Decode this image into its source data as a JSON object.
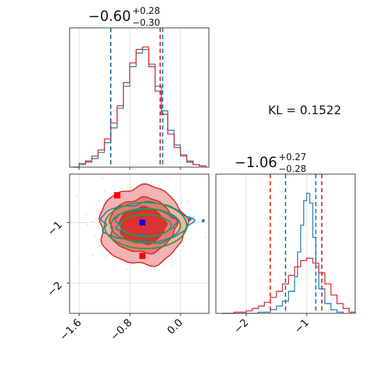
{
  "chart_data": {
    "type": "corner",
    "annotation": "KL = 0.1522",
    "colors": {
      "series_blue": "#1f77b4",
      "series_red": "#d62728",
      "gaussian": "#2ca02c",
      "grid": "#d9d9d9"
    },
    "params": [
      {
        "title": "−0.60",
        "plus": "+0.28",
        "minus": "−0.30",
        "median": -0.6,
        "q_low": -0.9,
        "q_high": -0.32
      },
      {
        "title": "−1.06",
        "plus": "+0.27",
        "minus": "−0.28",
        "median": -1.06,
        "q_low": -1.34,
        "q_high": -0.79
      }
    ],
    "x_axis": {
      "ticks": [
        -1.6,
        -0.8,
        0.0
      ],
      "tick_labels": [
        "−1.6",
        "−0.8",
        "0.0"
      ],
      "range": [
        -1.75,
        0.45
      ]
    },
    "y_axis": {
      "ticks": [
        -1,
        -2
      ],
      "tick_labels": [
        "−1",
        "−2"
      ],
      "range": [
        -2.5,
        -0.2
      ]
    },
    "diag2_axis": {
      "ticks": [
        -2,
        -1
      ],
      "tick_labels": [
        "−2",
        "−1"
      ],
      "range": [
        -2.5,
        -0.2
      ]
    },
    "diag1_lines": {
      "red": [
        -1.1,
        -0.32
      ],
      "blue": [
        -1.1,
        -0.28
      ]
    },
    "diag2_lines": {
      "red": [
        -1.6,
        -0.75
      ],
      "blue": [
        -1.35,
        -0.85
      ]
    },
    "hist1_blue": [
      {
        "x": -1.7,
        "y": 0.0
      },
      {
        "x": -1.6,
        "y": 0.02
      },
      {
        "x": -1.5,
        "y": 0.04
      },
      {
        "x": -1.4,
        "y": 0.07
      },
      {
        "x": -1.3,
        "y": 0.12
      },
      {
        "x": -1.2,
        "y": 0.2
      },
      {
        "x": -1.1,
        "y": 0.32
      },
      {
        "x": -1.0,
        "y": 0.48
      },
      {
        "x": -0.9,
        "y": 0.66
      },
      {
        "x": -0.8,
        "y": 0.82
      },
      {
        "x": -0.7,
        "y": 0.93
      },
      {
        "x": -0.6,
        "y": 0.96
      },
      {
        "x": -0.5,
        "y": 0.84
      },
      {
        "x": -0.4,
        "y": 0.66
      },
      {
        "x": -0.3,
        "y": 0.46
      },
      {
        "x": -0.2,
        "y": 0.3
      },
      {
        "x": -0.1,
        "y": 0.18
      },
      {
        "x": 0.0,
        "y": 0.1
      },
      {
        "x": 0.1,
        "y": 0.05
      },
      {
        "x": 0.2,
        "y": 0.02
      },
      {
        "x": 0.3,
        "y": 0.01
      },
      {
        "x": 0.4,
        "y": 0.0
      }
    ],
    "hist1_red": [
      {
        "x": -1.7,
        "y": 0.0
      },
      {
        "x": -1.6,
        "y": 0.03
      },
      {
        "x": -1.5,
        "y": 0.05
      },
      {
        "x": -1.4,
        "y": 0.09
      },
      {
        "x": -1.3,
        "y": 0.14
      },
      {
        "x": -1.2,
        "y": 0.23
      },
      {
        "x": -1.1,
        "y": 0.36
      },
      {
        "x": -1.0,
        "y": 0.5
      },
      {
        "x": -0.9,
        "y": 0.69
      },
      {
        "x": -0.8,
        "y": 0.85
      },
      {
        "x": -0.7,
        "y": 0.96
      },
      {
        "x": -0.6,
        "y": 0.98
      },
      {
        "x": -0.5,
        "y": 0.82
      },
      {
        "x": -0.4,
        "y": 0.62
      },
      {
        "x": -0.3,
        "y": 0.43
      },
      {
        "x": -0.2,
        "y": 0.27
      },
      {
        "x": -0.1,
        "y": 0.16
      },
      {
        "x": 0.0,
        "y": 0.09
      },
      {
        "x": 0.1,
        "y": 0.04
      },
      {
        "x": 0.2,
        "y": 0.02
      },
      {
        "x": 0.3,
        "y": 0.01
      },
      {
        "x": 0.4,
        "y": 0.0
      }
    ],
    "hist2_blue": [
      {
        "x": -2.4,
        "y": 0.0
      },
      {
        "x": -2.2,
        "y": 0.0
      },
      {
        "x": -2.0,
        "y": 0.0
      },
      {
        "x": -1.8,
        "y": 0.01
      },
      {
        "x": -1.6,
        "y": 0.03
      },
      {
        "x": -1.5,
        "y": 0.06
      },
      {
        "x": -1.4,
        "y": 0.1
      },
      {
        "x": -1.3,
        "y": 0.18
      },
      {
        "x": -1.2,
        "y": 0.3
      },
      {
        "x": -1.15,
        "y": 0.5
      },
      {
        "x": -1.1,
        "y": 0.72
      },
      {
        "x": -1.05,
        "y": 0.92
      },
      {
        "x": -1.0,
        "y": 0.98
      },
      {
        "x": -0.95,
        "y": 0.9
      },
      {
        "x": -0.9,
        "y": 0.62
      },
      {
        "x": -0.85,
        "y": 0.38
      },
      {
        "x": -0.8,
        "y": 0.2
      },
      {
        "x": -0.7,
        "y": 0.08
      },
      {
        "x": -0.6,
        "y": 0.03
      },
      {
        "x": -0.5,
        "y": 0.01
      },
      {
        "x": -0.4,
        "y": 0.0
      }
    ],
    "hist2_red": [
      {
        "x": -2.4,
        "y": 0.0
      },
      {
        "x": -2.2,
        "y": 0.01
      },
      {
        "x": -2.0,
        "y": 0.02
      },
      {
        "x": -1.9,
        "y": 0.04
      },
      {
        "x": -1.8,
        "y": 0.06
      },
      {
        "x": -1.7,
        "y": 0.09
      },
      {
        "x": -1.6,
        "y": 0.13
      },
      {
        "x": -1.5,
        "y": 0.18
      },
      {
        "x": -1.4,
        "y": 0.24
      },
      {
        "x": -1.3,
        "y": 0.31
      },
      {
        "x": -1.2,
        "y": 0.38
      },
      {
        "x": -1.1,
        "y": 0.43
      },
      {
        "x": -1.0,
        "y": 0.45
      },
      {
        "x": -0.9,
        "y": 0.41
      },
      {
        "x": -0.8,
        "y": 0.33
      },
      {
        "x": -0.7,
        "y": 0.24
      },
      {
        "x": -0.6,
        "y": 0.15
      },
      {
        "x": -0.5,
        "y": 0.08
      },
      {
        "x": -0.4,
        "y": 0.04
      },
      {
        "x": -0.3,
        "y": 0.01
      },
      {
        "x": -0.2,
        "y": 0.0
      }
    ],
    "contours_red": [
      {
        "cx": -0.6,
        "cy": -1.05,
        "rx": 0.68,
        "ry": 0.65,
        "level": 0.2
      },
      {
        "cx": -0.6,
        "cy": -1.05,
        "rx": 0.52,
        "ry": 0.45,
        "level": 0.4
      },
      {
        "cx": -0.6,
        "cy": -1.05,
        "rx": 0.36,
        "ry": 0.3,
        "level": 0.7
      }
    ],
    "contours_blue": [
      {
        "cx": -0.55,
        "cy": -1.0,
        "rx": 0.7,
        "ry": 0.32
      },
      {
        "cx": -0.55,
        "cy": -1.0,
        "rx": 0.48,
        "ry": 0.22
      }
    ],
    "contours_green": [
      {
        "cx": -0.55,
        "cy": -1.05,
        "rx": 0.65,
        "ry": 0.38
      },
      {
        "cx": -0.55,
        "cy": -1.05,
        "rx": 0.55,
        "ry": 0.28
      },
      {
        "cx": -0.55,
        "cy": -1.05,
        "rx": 0.4,
        "ry": 0.18
      }
    ],
    "markers_red": [
      {
        "x": -1.0,
        "y": -0.55
      },
      {
        "x": -0.6,
        "y": -1.0
      },
      {
        "x": -0.6,
        "y": -1.55
      }
    ],
    "markers_blue": [
      {
        "x": -0.6,
        "y": -1.0
      }
    ],
    "blue_points": [
      {
        "x": 0.15,
        "y": -0.95
      },
      {
        "x": 0.36,
        "y": -0.97
      }
    ]
  }
}
